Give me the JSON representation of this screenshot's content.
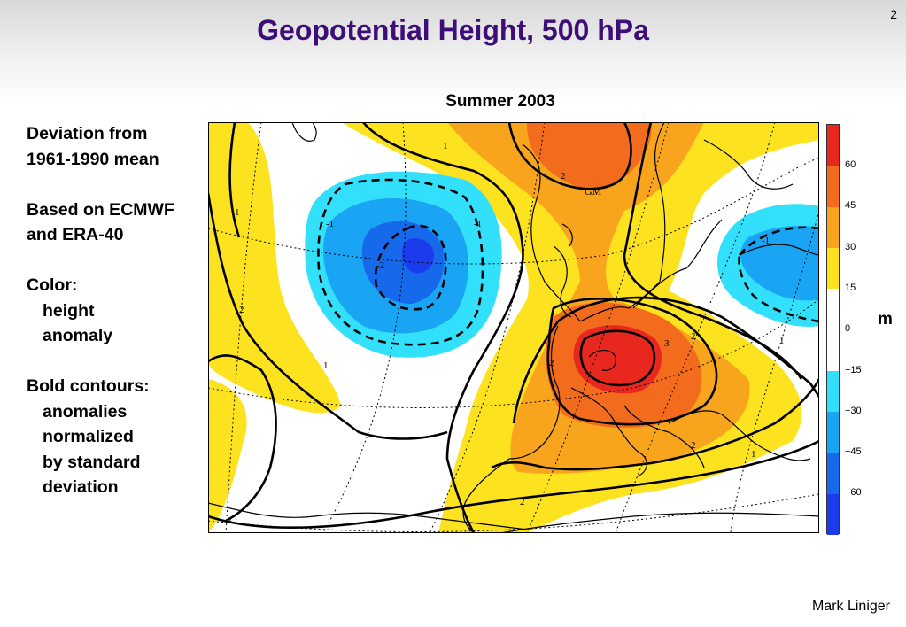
{
  "slide": {
    "number": "2",
    "title": "Geopotential Height, 500 hPa",
    "author": "Mark Liniger"
  },
  "map": {
    "title": "Summer 2003",
    "unit": "m",
    "place_label": "GM",
    "contour_labels": [
      "1",
      "2",
      "-1",
      "-2",
      "3"
    ]
  },
  "notes": {
    "line1": "Deviation from",
    "line2": "1961-1990 mean",
    "line3": "Based on ECMWF",
    "line4": "and ERA-40",
    "line5": "Color:",
    "line6": "height",
    "line7": "anomaly",
    "line8": "Bold contours:",
    "line9": "anomalies",
    "line10": "normalized",
    "line11": "by standard",
    "line12": "deviation"
  },
  "colorbar": {
    "tick_labels": [
      "60",
      "45",
      "30",
      "15",
      "0",
      "−15",
      "−30",
      "−45",
      "−60"
    ],
    "colors": [
      "#e8281e",
      "#f36b1c",
      "#f9a41d",
      "#fde21f",
      "#ffffff",
      "#ffffff",
      "#33e0fb",
      "#1aa4f4",
      "#1769ec",
      "#1b3ced"
    ]
  }
}
